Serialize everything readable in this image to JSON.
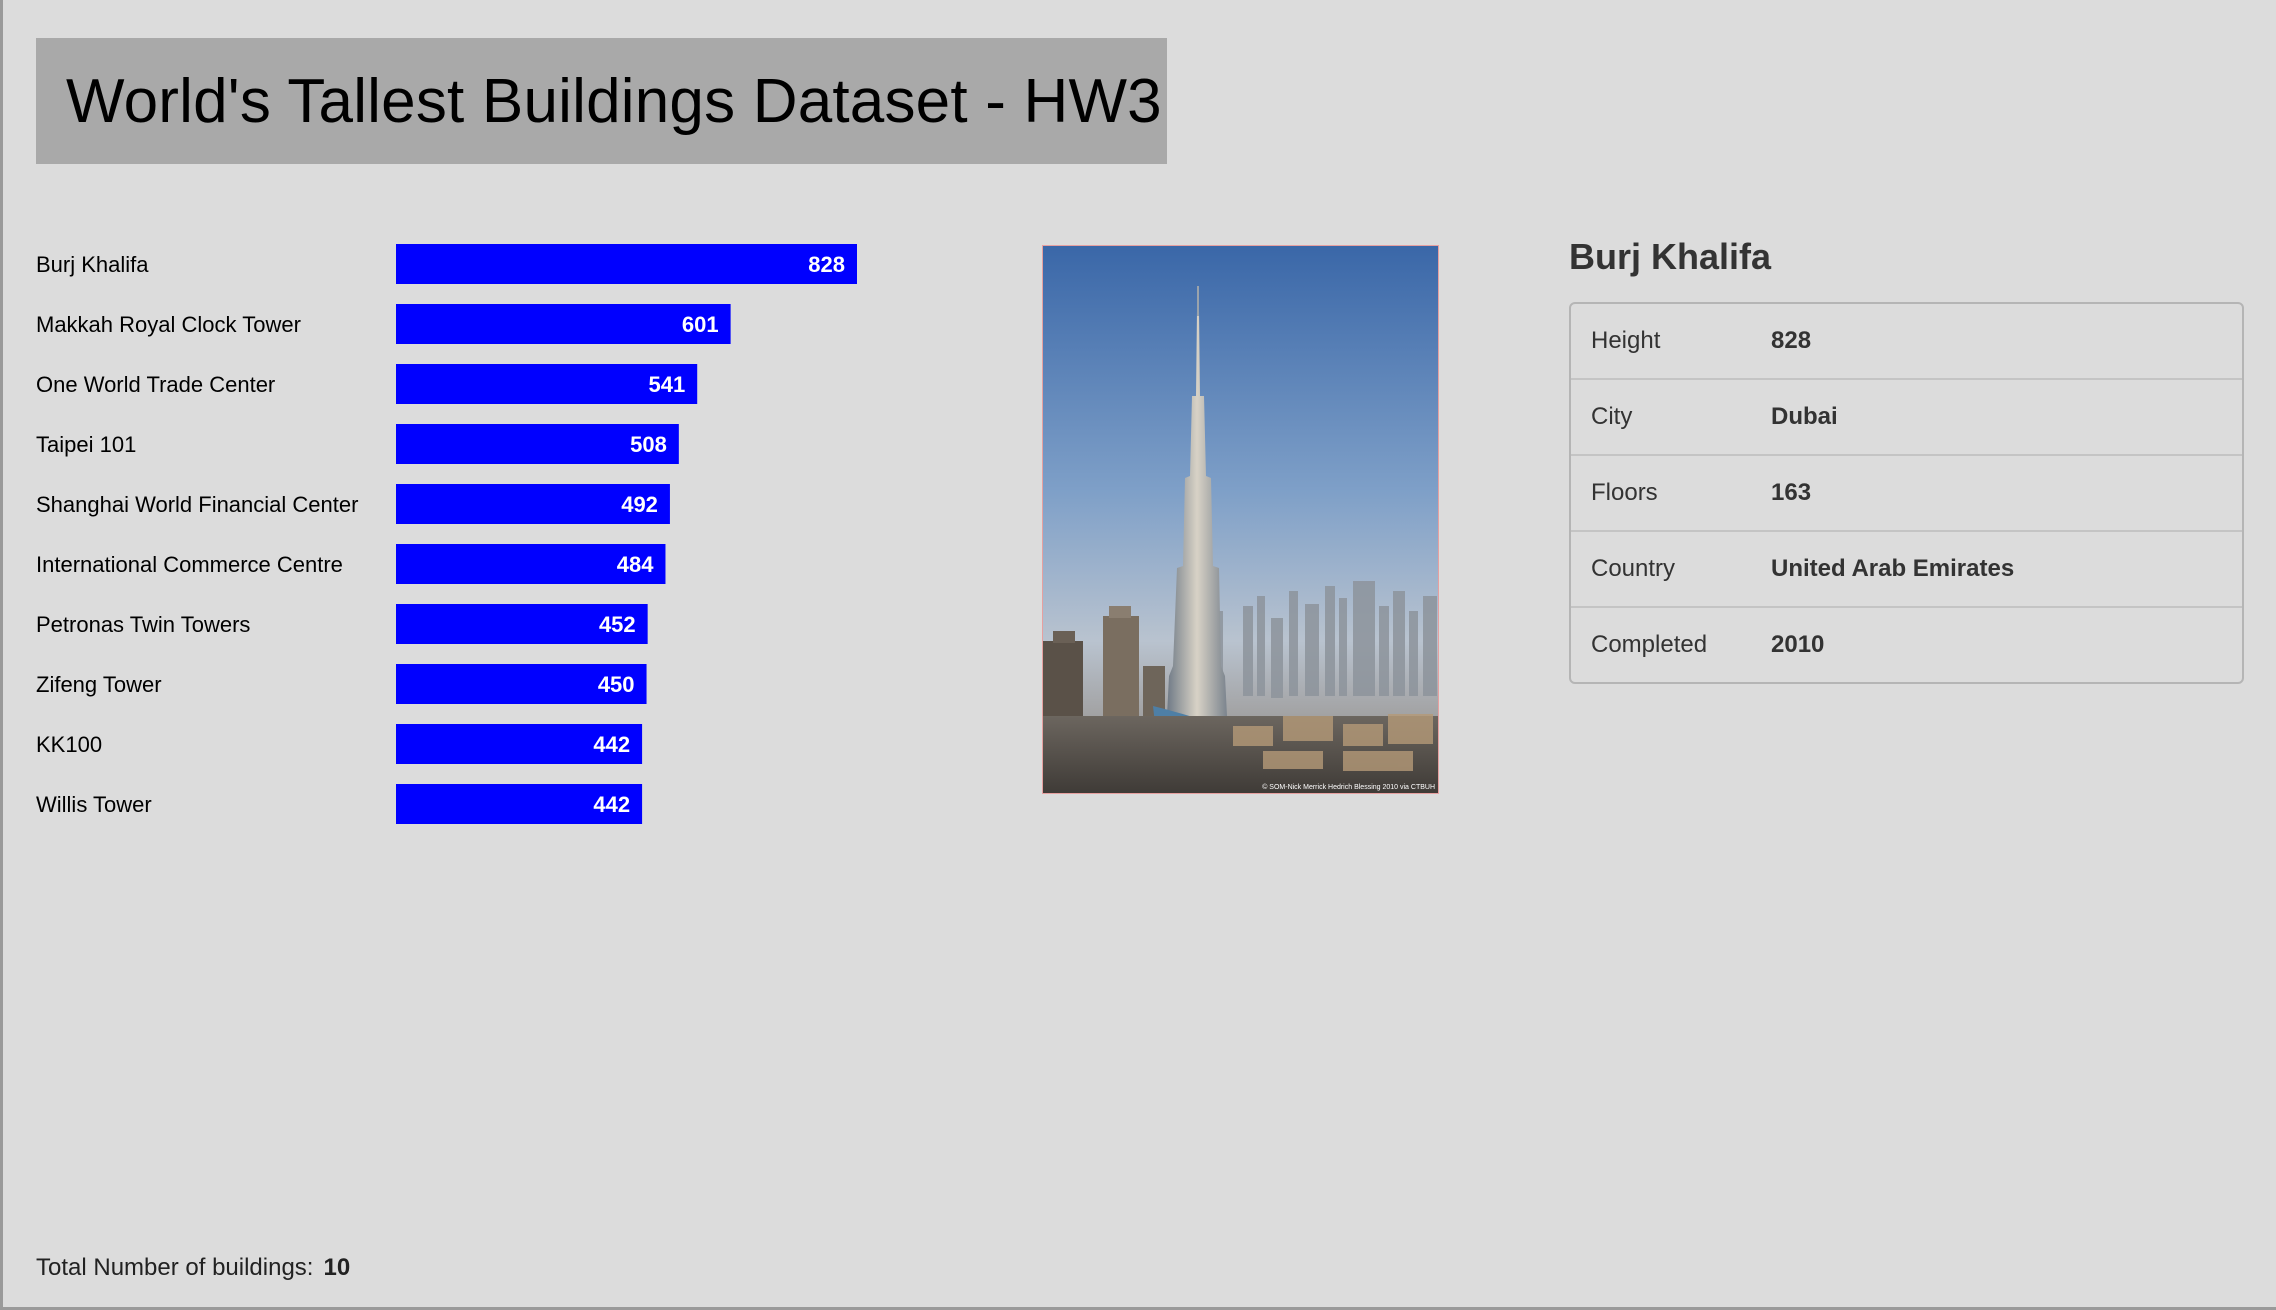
{
  "page": {
    "title": "World's Tallest Buildings Dataset - HW3"
  },
  "chart_data": {
    "type": "bar",
    "orientation": "horizontal",
    "categories": [
      "Burj Khalifa",
      "Makkah Royal Clock Tower",
      "One World Trade Center",
      "Taipei 101",
      "Shanghai World Financial Center",
      "International Commerce Centre",
      "Petronas Twin Towers",
      "Zifeng Tower",
      "KK100",
      "Willis Tower"
    ],
    "values": [
      828,
      601,
      541,
      508,
      492,
      484,
      452,
      450,
      442,
      442
    ],
    "data_labels": true,
    "bar_color": "#0000ff",
    "label_color": "#ffffff"
  },
  "photo": {
    "credit": "© SOM-Nick Merrick Hedrich Blessing 2010 via CTBUH"
  },
  "detail": {
    "name": "Burj Khalifa",
    "rows": [
      {
        "key": "Height",
        "value": "828"
      },
      {
        "key": "City",
        "value": "Dubai"
      },
      {
        "key": "Floors",
        "value": "163"
      },
      {
        "key": "Country",
        "value": "United Arab Emirates"
      },
      {
        "key": "Completed",
        "value": "2010"
      }
    ]
  },
  "footer": {
    "label": "Total Number of buildings:",
    "count": "10"
  }
}
